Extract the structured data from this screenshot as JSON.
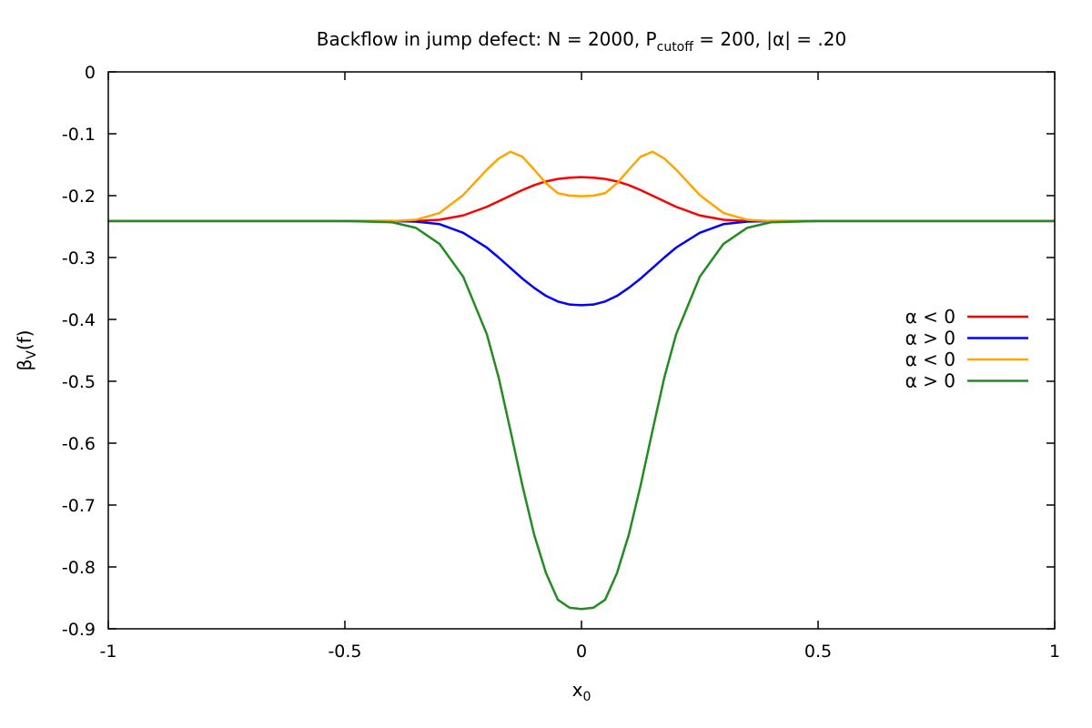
{
  "chart_data": {
    "type": "line",
    "title": {
      "prefix": "Backflow in jump defect: N = 2000, P",
      "sub": "cutoff",
      "suffix": " = 200, |α| = .20"
    },
    "xlabel": {
      "base": "x",
      "sub": "0"
    },
    "ylabel": {
      "base": "β",
      "sub": "V",
      "suffix": "(f)"
    },
    "xlim": [
      -1,
      1
    ],
    "ylim": [
      -0.9,
      0
    ],
    "xticks": [
      {
        "value": -1,
        "label": "-1"
      },
      {
        "value": -0.5,
        "label": "-0.5"
      },
      {
        "value": 0,
        "label": "0"
      },
      {
        "value": 0.5,
        "label": "0.5"
      },
      {
        "value": 1,
        "label": "1"
      }
    ],
    "yticks": [
      {
        "value": 0,
        "label": "0"
      },
      {
        "value": -0.1,
        "label": "-0.1"
      },
      {
        "value": -0.2,
        "label": "-0.2"
      },
      {
        "value": -0.3,
        "label": "-0.3"
      },
      {
        "value": -0.4,
        "label": "-0.4"
      },
      {
        "value": -0.5,
        "label": "-0.5"
      },
      {
        "value": -0.6,
        "label": "-0.6"
      },
      {
        "value": -0.7,
        "label": "-0.7"
      },
      {
        "value": -0.8,
        "label": "-0.8"
      },
      {
        "value": -0.9,
        "label": "-0.9"
      }
    ],
    "grid": false,
    "legend_position": "right",
    "x": [
      -1.0,
      -0.5,
      -0.4,
      -0.35,
      -0.3,
      -0.25,
      -0.2,
      -0.175,
      -0.15,
      -0.125,
      -0.1,
      -0.075,
      -0.05,
      -0.025,
      0.0,
      0.025,
      0.05,
      0.075,
      0.1,
      0.125,
      0.15,
      0.175,
      0.2,
      0.25,
      0.3,
      0.35,
      0.4,
      0.5,
      1.0
    ],
    "series": [
      {
        "name": "α < 0",
        "color": "#ff0000",
        "values": [
          -0.241,
          -0.241,
          -0.241,
          -0.241,
          -0.239,
          -0.232,
          -0.218,
          -0.209,
          -0.2,
          -0.191,
          -0.183,
          -0.177,
          -0.173,
          -0.171,
          -0.17,
          -0.171,
          -0.173,
          -0.177,
          -0.183,
          -0.191,
          -0.2,
          -0.209,
          -0.218,
          -0.232,
          -0.239,
          -0.241,
          -0.241,
          -0.241,
          -0.241
        ]
      },
      {
        "name": "α > 0",
        "color": "#0000ff",
        "values": [
          -0.241,
          -0.241,
          -0.241,
          -0.242,
          -0.246,
          -0.26,
          -0.284,
          -0.3,
          -0.317,
          -0.334,
          -0.349,
          -0.362,
          -0.371,
          -0.376,
          -0.377,
          -0.376,
          -0.371,
          -0.362,
          -0.349,
          -0.334,
          -0.317,
          -0.3,
          -0.284,
          -0.26,
          -0.246,
          -0.242,
          -0.241,
          -0.241,
          -0.241
        ]
      },
      {
        "name": "α < 0",
        "color": "#ffa500",
        "values": [
          -0.241,
          -0.241,
          -0.241,
          -0.239,
          -0.228,
          -0.199,
          -0.158,
          -0.14,
          -0.129,
          -0.137,
          -0.158,
          -0.18,
          -0.196,
          -0.2,
          -0.201,
          -0.2,
          -0.196,
          -0.18,
          -0.158,
          -0.137,
          -0.129,
          -0.14,
          -0.158,
          -0.199,
          -0.228,
          -0.239,
          -0.241,
          -0.241,
          -0.241
        ]
      },
      {
        "name": "α > 0",
        "color": "#228b22",
        "values": [
          -0.241,
          -0.241,
          -0.243,
          -0.252,
          -0.278,
          -0.331,
          -0.424,
          -0.494,
          -0.58,
          -0.668,
          -0.748,
          -0.81,
          -0.853,
          -0.866,
          -0.868,
          -0.866,
          -0.853,
          -0.81,
          -0.748,
          -0.668,
          -0.58,
          -0.494,
          -0.424,
          -0.331,
          -0.278,
          -0.252,
          -0.243,
          -0.241,
          -0.241
        ]
      }
    ]
  }
}
